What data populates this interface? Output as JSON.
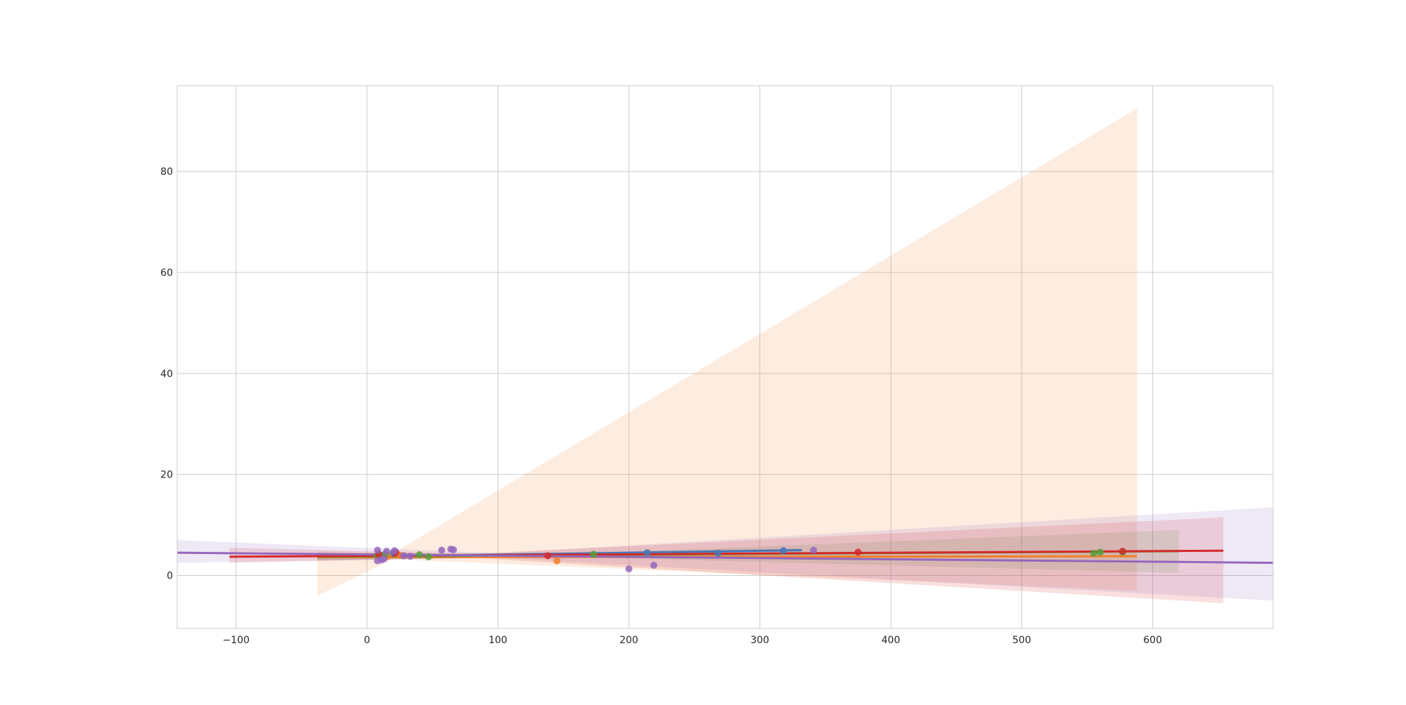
{
  "chart_data": {
    "type": "scatter",
    "title": "",
    "xlabel": "",
    "ylabel": "",
    "xlim": [
      -145,
      692
    ],
    "ylim": [
      -10.5,
      97
    ],
    "xticks": [
      -100,
      0,
      100,
      200,
      300,
      400,
      500,
      600
    ],
    "xtick_labels": [
      "−100",
      "0",
      "100",
      "200",
      "300",
      "400",
      "500",
      "600"
    ],
    "yticks": [
      0,
      20,
      40,
      60,
      80
    ],
    "ytick_labels": [
      "0",
      "20",
      "40",
      "60",
      "80"
    ],
    "grid": true,
    "legend": "none",
    "series": [
      {
        "color": "#4878b8",
        "points": [
          [
            12,
            4.0
          ],
          [
            20,
            4.5
          ],
          [
            214,
            4.5
          ],
          [
            268,
            4.4
          ],
          [
            318,
            4.9
          ]
        ],
        "fit": [
          [
            -38,
            3.6
          ],
          [
            332,
            5.0
          ]
        ],
        "band": [
          [
            -38,
            3.0,
            4.3
          ],
          [
            100,
            3.8,
            4.4
          ],
          [
            332,
            4.4,
            5.4
          ]
        ]
      },
      {
        "color": "#f07f2c",
        "points": [
          [
            10,
            3.6
          ],
          [
            16,
            3.8
          ],
          [
            25,
            4.0
          ],
          [
            145,
            2.9
          ]
        ],
        "fit": [
          [
            -38,
            3.6
          ],
          [
            588,
            3.8
          ]
        ],
        "band": [
          [
            -38,
            -4.0,
            4.8
          ],
          [
            20,
            3.2,
            4.4
          ],
          [
            588,
            -3.0,
            92.5
          ]
        ]
      },
      {
        "color": "#55a03c",
        "points": [
          [
            8,
            4.0
          ],
          [
            14,
            4.2
          ],
          [
            40,
            4.1
          ],
          [
            47,
            3.7
          ],
          [
            173,
            4.2
          ],
          [
            555,
            4.4
          ],
          [
            560,
            4.6
          ],
          [
            577,
            4.6
          ]
        ],
        "fit": [
          [
            -38,
            3.7
          ],
          [
            620,
            4.8
          ]
        ],
        "band": [
          [
            -38,
            3.0,
            4.5
          ],
          [
            150,
            3.7,
            4.2
          ],
          [
            620,
            0.5,
            9.0
          ]
        ]
      },
      {
        "color": "#d42a2a",
        "points": [
          [
            9,
            4.2
          ],
          [
            22,
            4.6
          ],
          [
            138,
            3.9
          ],
          [
            375,
            4.6
          ],
          [
            577,
            4.8
          ]
        ],
        "fit": [
          [
            -105,
            3.7
          ],
          [
            654,
            4.9
          ]
        ],
        "band": [
          [
            -105,
            2.5,
            5.5
          ],
          [
            80,
            3.5,
            4.3
          ],
          [
            654,
            -5.5,
            11.5
          ]
        ]
      },
      {
        "color": "#9467bd",
        "points": [
          [
            8,
            5.0
          ],
          [
            8,
            2.9
          ],
          [
            11,
            3.1
          ],
          [
            13,
            3.3
          ],
          [
            15,
            4.8
          ],
          [
            21,
            4.9
          ],
          [
            28,
            3.9
          ],
          [
            33,
            3.8
          ],
          [
            57,
            5.0
          ],
          [
            64,
            5.2
          ],
          [
            66,
            5.1
          ],
          [
            200,
            1.3
          ],
          [
            219,
            2.0
          ],
          [
            341,
            5.0
          ]
        ],
        "fit": [
          [
            -145,
            4.5
          ],
          [
            692,
            2.5
          ]
        ],
        "band": [
          [
            -145,
            2.5,
            7.0
          ],
          [
            100,
            3.5,
            4.4
          ],
          [
            692,
            -5.0,
            13.5
          ]
        ]
      }
    ]
  }
}
